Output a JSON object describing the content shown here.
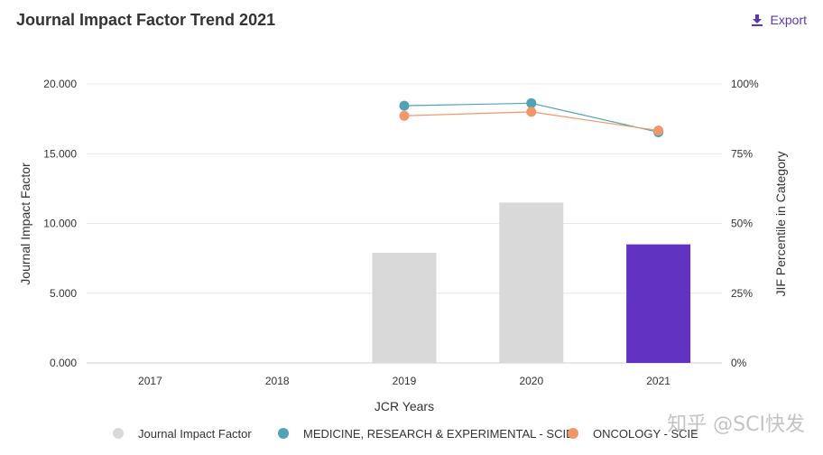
{
  "header": {
    "title": "Journal Impact Factor Trend 2021",
    "export_label": "Export",
    "export_icon": "download-icon"
  },
  "watermark": "知乎 @SCI快发",
  "chart_data": {
    "type": "bar",
    "title": "Journal Impact Factor Trend 2021",
    "xlabel": "JCR Years",
    "ylabel": "Journal Impact Factor",
    "y2label": "JIF Percentile in Category",
    "categories": [
      "2017",
      "2018",
      "2019",
      "2020",
      "2021"
    ],
    "ylim": [
      0,
      20
    ],
    "y2lim": [
      0,
      100
    ],
    "yticks": [
      "0.000",
      "5.000",
      "10.000",
      "15.000",
      "20.000"
    ],
    "y2ticks": [
      "0%",
      "25%",
      "50%",
      "75%",
      "100%"
    ],
    "grid": true,
    "legend_position": "bottom",
    "bars": {
      "name": "Journal Impact Factor",
      "values": [
        null,
        null,
        7.9,
        11.5,
        8.5
      ],
      "color": "#d9d9d9",
      "highlight_color": "#6233c3",
      "highlight_category": "2021"
    },
    "series": [
      {
        "name": "MEDICINE, RESEARCH & EXPERIMENTAL - SCIE",
        "axis": "right",
        "color": "#4fa3b5",
        "values": [
          null,
          null,
          92.2,
          93.1,
          82.7
        ]
      },
      {
        "name": "ONCOLOGY - SCIE",
        "axis": "right",
        "color": "#f2976a",
        "values": [
          null,
          null,
          88.6,
          90.0,
          83.3
        ]
      }
    ]
  }
}
